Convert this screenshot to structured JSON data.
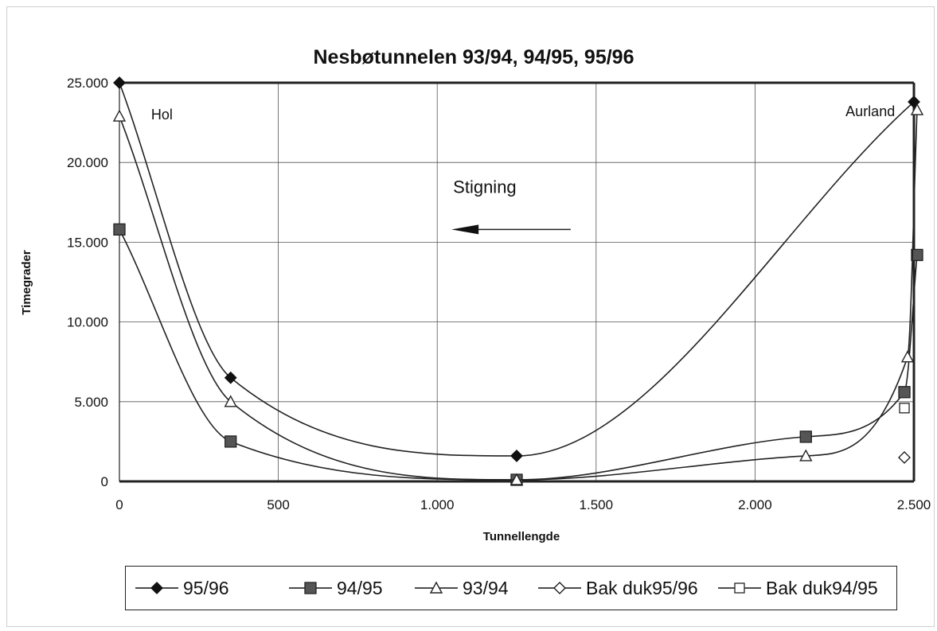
{
  "chart_data": {
    "type": "line",
    "title": "Nesbøtunnelen 93/94, 94/95, 95/96",
    "xlabel": "Tunnellengde",
    "ylabel": "Timegrader",
    "xlim": [
      0,
      2500
    ],
    "ylim": [
      0,
      25000
    ],
    "x_ticks": [
      {
        "value": 0,
        "label": "0"
      },
      {
        "value": 500,
        "label": "500"
      },
      {
        "value": 1000,
        "label": "1.000"
      },
      {
        "value": 1500,
        "label": "1.500"
      },
      {
        "value": 2000,
        "label": "2.000"
      },
      {
        "value": 2500,
        "label": "2.500"
      }
    ],
    "y_ticks": [
      {
        "value": 0,
        "label": "0"
      },
      {
        "value": 5000,
        "label": "5.000"
      },
      {
        "value": 10000,
        "label": "10.000"
      },
      {
        "value": 15000,
        "label": "15.000"
      },
      {
        "value": 20000,
        "label": "20.000"
      },
      {
        "value": 25000,
        "label": "25.000"
      }
    ],
    "grid": true,
    "legend_position": "bottom",
    "annotations": [
      {
        "text": "Hol",
        "x": 100,
        "y": 22700
      },
      {
        "text": "Aurland",
        "x": 2285,
        "y": 22900
      },
      {
        "text": "Stigning",
        "x": 1050,
        "y": 18100
      }
    ],
    "arrow": {
      "from": [
        1420,
        15800
      ],
      "to": [
        1045,
        15800
      ]
    },
    "series": [
      {
        "name": "95/96",
        "marker": "diamond-filled",
        "smooth": true,
        "points": [
          [
            0,
            25000
          ],
          [
            350,
            6500
          ],
          [
            1250,
            1600
          ],
          [
            2500,
            23800
          ]
        ]
      },
      {
        "name": "94/95",
        "marker": "square-filled",
        "smooth": true,
        "points": [
          [
            0,
            15800
          ],
          [
            350,
            2500
          ],
          [
            1250,
            100
          ],
          [
            2160,
            2800
          ],
          [
            2470,
            5600
          ],
          [
            2510,
            14200
          ]
        ]
      },
      {
        "name": "93/94",
        "marker": "triangle-open",
        "smooth": true,
        "points": [
          [
            0,
            22900
          ],
          [
            350,
            5000
          ],
          [
            1250,
            100
          ],
          [
            2160,
            1600
          ],
          [
            2480,
            7800
          ],
          [
            2510,
            23300
          ]
        ]
      },
      {
        "name": "Bak duk95/96",
        "marker": "diamond-open",
        "smooth": false,
        "points": [
          [
            2470,
            1500
          ]
        ]
      },
      {
        "name": "Bak duk94/95",
        "marker": "square-open",
        "smooth": false,
        "points": [
          [
            2470,
            4600
          ]
        ]
      }
    ]
  }
}
